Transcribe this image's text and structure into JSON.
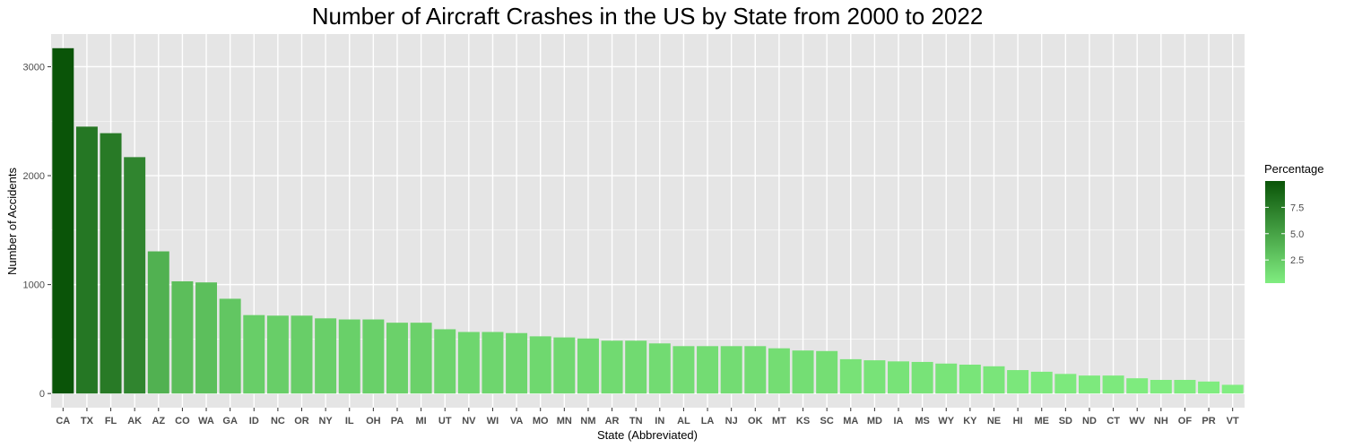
{
  "chart_data": {
    "type": "bar",
    "title": "Number of Aircraft Crashes in the US by State from 2000 to 2022",
    "xlabel": "State (Abbreviated)",
    "ylabel": "Number of Accidents",
    "ylim": [
      0,
      3300
    ],
    "yticks": [
      0,
      1000,
      2000,
      3000
    ],
    "grid": true,
    "legend": {
      "title": "Percentage",
      "position": "right",
      "ticks": [
        2.5,
        5.0,
        7.5
      ],
      "tick_labels": [
        "2.5",
        "5.0",
        "7.5"
      ],
      "range": [
        0.3,
        10.0
      ],
      "color_low": "#80ed80",
      "color_high": "#0a5408"
    },
    "categories": [
      "CA",
      "TX",
      "FL",
      "AK",
      "AZ",
      "CO",
      "WA",
      "GA",
      "ID",
      "NC",
      "OR",
      "NY",
      "IL",
      "OH",
      "PA",
      "MI",
      "UT",
      "NV",
      "WI",
      "VA",
      "MO",
      "MN",
      "NM",
      "AR",
      "TN",
      "IN",
      "AL",
      "LA",
      "NJ",
      "OK",
      "MT",
      "KS",
      "SC",
      "MA",
      "MD",
      "IA",
      "MS",
      "WY",
      "KY",
      "NE",
      "HI",
      "ME",
      "SD",
      "ND",
      "CT",
      "WV",
      "NH",
      "OF",
      "PR",
      "VT"
    ],
    "values": [
      3170,
      2450,
      2390,
      2170,
      1305,
      1030,
      1020,
      870,
      720,
      715,
      715,
      690,
      680,
      680,
      650,
      650,
      590,
      565,
      565,
      555,
      525,
      515,
      505,
      485,
      485,
      460,
      435,
      435,
      435,
      435,
      415,
      395,
      390,
      315,
      305,
      295,
      290,
      275,
      265,
      250,
      215,
      200,
      180,
      165,
      165,
      140,
      125,
      125,
      110,
      80
    ],
    "colors_by": "percentage"
  }
}
